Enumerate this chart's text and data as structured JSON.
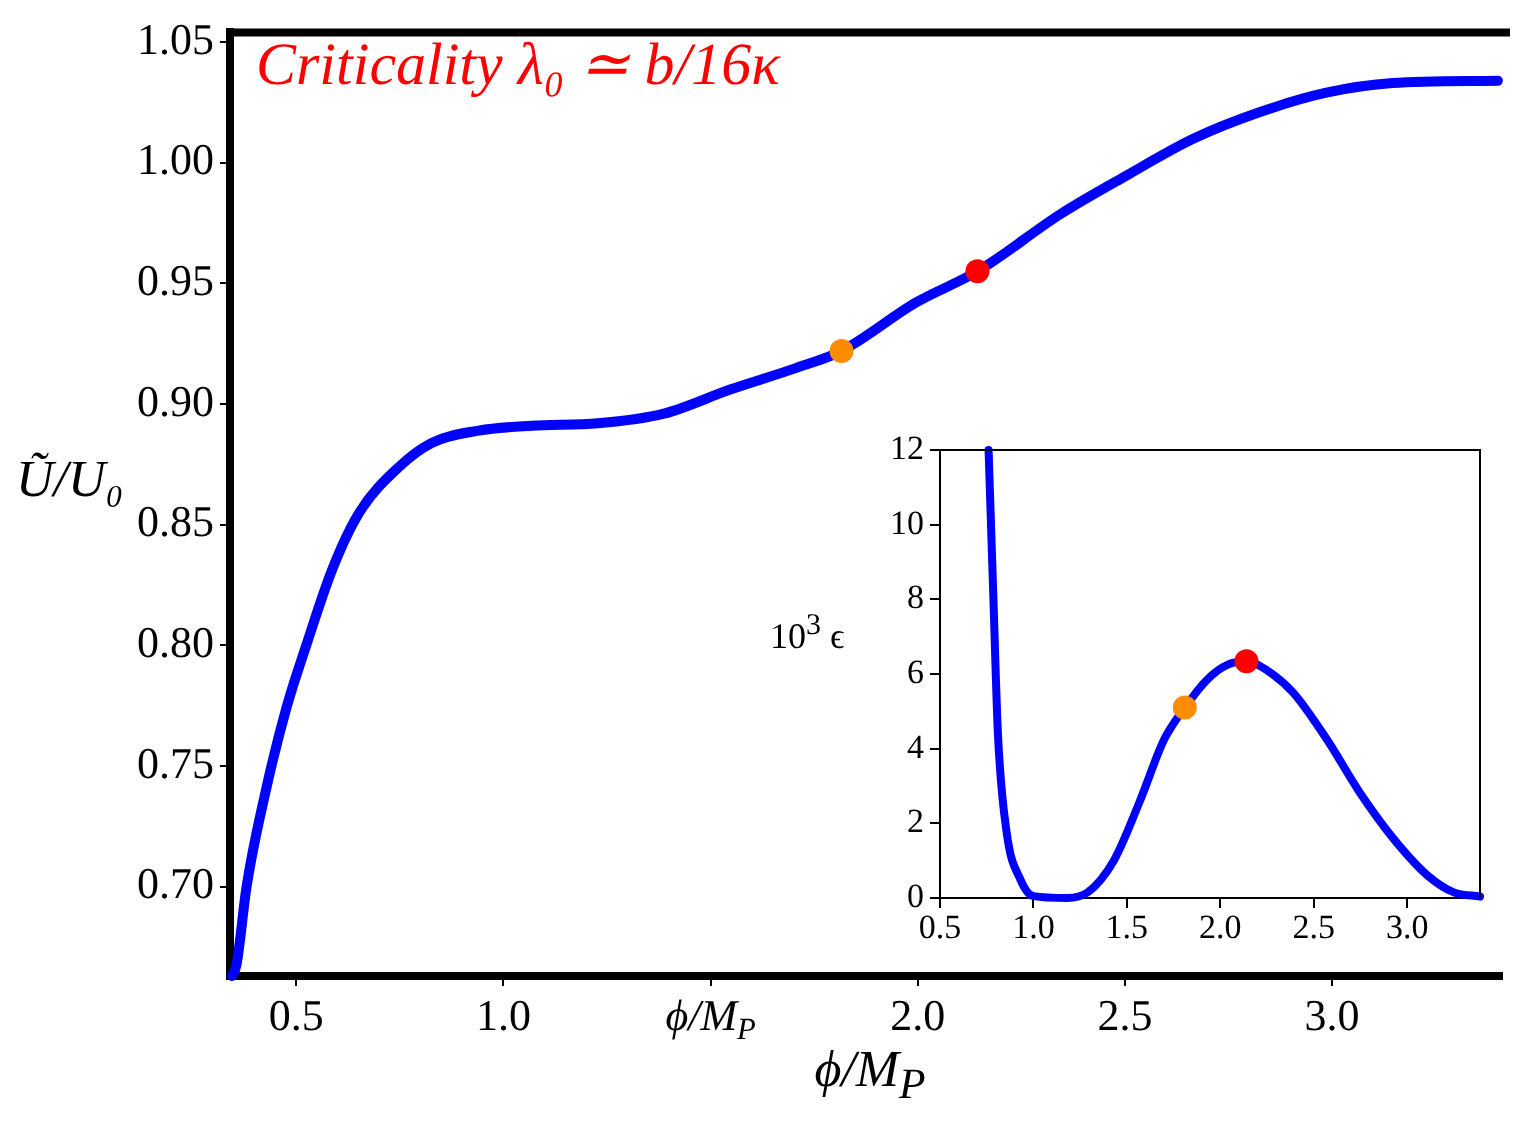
{
  "chart_data": [
    {
      "type": "line",
      "xlabel": "ϕ/M$_{P}$",
      "ylabel": "Ũ/U₀",
      "annotations": [
        "Criticality λ₀ ≃ b/16κ"
      ],
      "xlim": [
        0.34,
        3.41
      ],
      "ylim": [
        0.663,
        1.054
      ],
      "xticks": [
        0.5,
        {
          "value": 1,
          "label": "1.0"
        },
        {
          "value": 1.5,
          "label": "ϕ/M$_{P}$"
        },
        {
          "value": 2,
          "label": "2.0"
        },
        2.5,
        {
          "value": 3,
          "label": "3.0"
        }
      ],
      "yticks": [
        {
          "value": 0.7,
          "label": "0.70"
        },
        0.75,
        {
          "value": 0.8,
          "label": "0.80"
        },
        0.85,
        {
          "value": 0.9,
          "label": "0.90"
        },
        0.95,
        {
          "value": 1,
          "label": "1.00"
        },
        1.05
      ],
      "series": [
        {
          "color": "#0000ff",
          "x": [
            0.345,
            0.356,
            0.38,
            0.428,
            0.476,
            0.524,
            0.588,
            0.652,
            0.748,
            0.828,
            0.94,
            1.068,
            1.228,
            1.387,
            1.547,
            1.707,
            1.816,
            1.995,
            2.144,
            2.347,
            2.507,
            2.666,
            2.826,
            2.986,
            3.146,
            3.4
          ],
          "values": [
            0.663,
            0.668,
            0.7,
            0.741,
            0.774,
            0.8,
            0.832,
            0.855,
            0.874,
            0.884,
            0.889,
            0.891,
            0.892,
            0.896,
            0.906,
            0.915,
            0.922,
            0.942,
            0.955,
            0.979,
            0.995,
            1.01,
            1.021,
            1.029,
            1.033,
            1.034
          ]
        },
        {
          "type": "scatter",
          "colors": [
            "#ff8c00",
            "#ff0000"
          ],
          "x": [
            1.816,
            2.144
          ],
          "values": [
            0.922,
            0.955
          ]
        }
      ]
    },
    {
      "type": "line",
      "ylabel": "10$^{3}$ ϵ",
      "xlim": [
        0.5,
        3.39
      ],
      "ylim": [
        0,
        12
      ],
      "xticks": [
        0.5,
        {
          "value": 1,
          "label": "1.0"
        },
        1.5,
        {
          "value": 2,
          "label": "2.0"
        },
        2.5,
        {
          "value": 3,
          "label": "3.0"
        }
      ],
      "yticks": [
        0,
        2,
        4,
        6,
        8,
        10,
        12
      ],
      "series": [
        {
          "color": "#0000ff",
          "x": [
            0.76,
            0.786,
            0.81,
            0.857,
            0.93,
            1.0,
            1.18,
            1.29,
            1.43,
            1.57,
            1.7,
            1.81,
            1.93,
            2.04,
            2.14,
            2.25,
            2.39,
            2.57,
            2.75,
            2.93,
            3.11,
            3.25,
            3.39
          ],
          "values": [
            12,
            8,
            4.4,
            1.75,
            0.5,
            0.05,
            0,
            0.15,
            1.0,
            2.6,
            4.25,
            5.1,
            5.85,
            6.25,
            6.34,
            6.1,
            5.5,
            4.25,
            2.8,
            1.57,
            0.6,
            0.15,
            0.04
          ]
        },
        {
          "type": "scatter",
          "colors": [
            "#ff8c00",
            "#ff0000"
          ],
          "x": [
            1.81,
            2.14
          ],
          "values": [
            5.1,
            6.34
          ]
        }
      ]
    }
  ]
}
